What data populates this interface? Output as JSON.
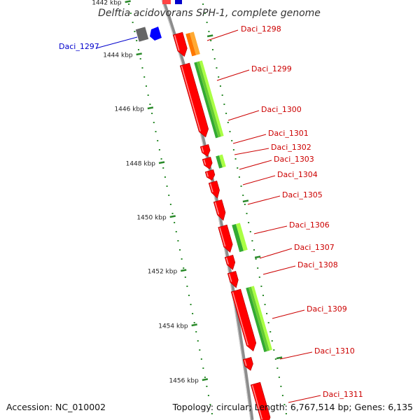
{
  "title": "Delftia acidovorans SPH-1, complete genome",
  "footer": {
    "accession": "Accession: NC_010002",
    "topology": "Topology: circular; Length: 6,767,514 bp; Genes: 6,135"
  },
  "colors": {
    "backbone": "#8c8c8c",
    "gene_forward": "#ff0000",
    "gene_reverse": "#0000ff",
    "cds_green": "#33aa33",
    "cds_lime": "#aaff44",
    "orange": "#ff8800",
    "tick": "#2a8a2a",
    "label_forward": "#cc0000",
    "label_reverse": "#0000cc"
  },
  "scale": {
    "tick_labels": [
      "1442 kbp",
      "1444 kbp",
      "1446 kbp",
      "1448 kbp",
      "1450 kbp",
      "1452 kbp",
      "1454 kbp",
      "1456 kbp"
    ]
  },
  "genes": [
    {
      "label": "Daci_1297",
      "strand": "reverse"
    },
    {
      "label": "Daci_1298",
      "strand": "forward"
    },
    {
      "label": "Daci_1299",
      "strand": "forward"
    },
    {
      "label": "Daci_1300",
      "strand": "forward"
    },
    {
      "label": "Daci_1301",
      "strand": "forward"
    },
    {
      "label": "Daci_1302",
      "strand": "forward"
    },
    {
      "label": "Daci_1303",
      "strand": "forward"
    },
    {
      "label": "Daci_1304",
      "strand": "forward"
    },
    {
      "label": "Daci_1305",
      "strand": "forward"
    },
    {
      "label": "Daci_1306",
      "strand": "forward"
    },
    {
      "label": "Daci_1307",
      "strand": "forward"
    },
    {
      "label": "Daci_1308",
      "strand": "forward"
    },
    {
      "label": "Daci_1309",
      "strand": "forward"
    },
    {
      "label": "Daci_1310",
      "strand": "forward"
    },
    {
      "label": "Daci_1311",
      "strand": "forward"
    }
  ]
}
